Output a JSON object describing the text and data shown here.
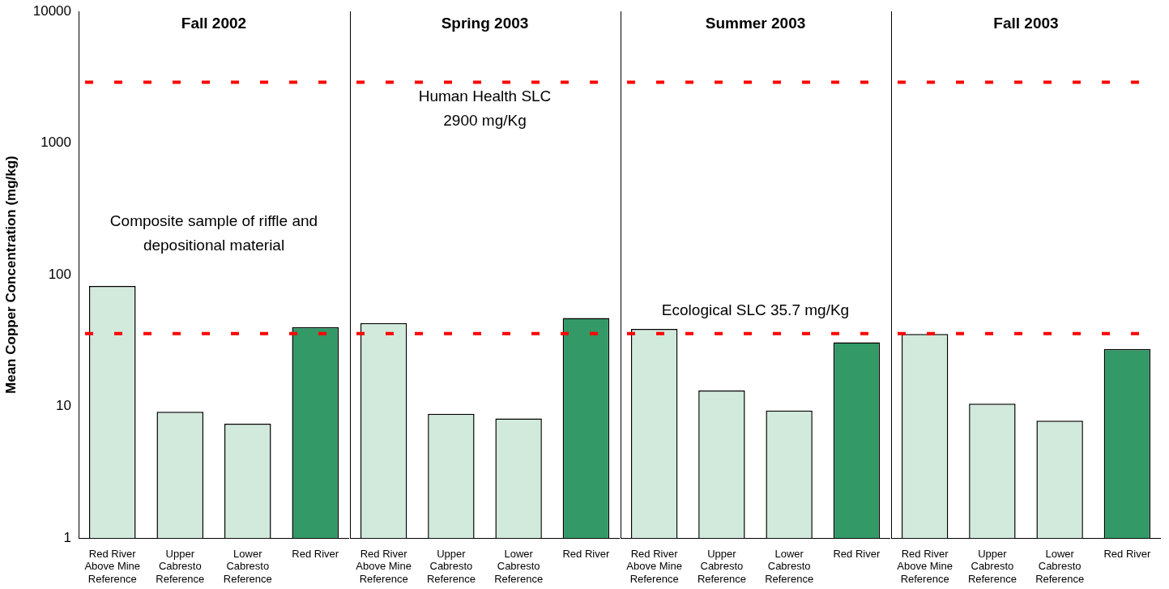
{
  "chart_data": [
    {
      "type": "bar",
      "title": "Fall 2002",
      "ylabel": "Mean Copper Concentration (mg/kg)",
      "categories": [
        "Red River Above Mine Reference",
        "Upper Cabresto Reference",
        "Lower Cabresto Reference",
        "Red River"
      ],
      "values": [
        82,
        9.1,
        7.4,
        40
      ],
      "colors": [
        "#d2eadc",
        "#d2eadc",
        "#d2eadc",
        "#339966"
      ],
      "log": true,
      "ylim": [
        1,
        10000
      ],
      "yticks": [
        1,
        10,
        100,
        1000,
        10000
      ],
      "ref_lines": [
        {
          "axis": "y",
          "value": 2900,
          "color": "#ff0000",
          "line_style": "dashed"
        },
        {
          "axis": "y",
          "value": 35.7,
          "color": "#ff0000",
          "line_style": "dashed"
        }
      ],
      "annotations": [
        "Composite sample of riffle and depositional material"
      ]
    },
    {
      "type": "bar",
      "title": "Spring 2003",
      "categories": [
        "Red River Above Mine Reference",
        "Upper Cabresto Reference",
        "Lower Cabresto Reference",
        "Red River"
      ],
      "values": [
        43,
        8.8,
        8.1,
        47
      ],
      "colors": [
        "#d2eadc",
        "#d2eadc",
        "#d2eadc",
        "#339966"
      ],
      "log": true,
      "ylim": [
        1,
        10000
      ],
      "tick_labels": "x",
      "ref_lines": [
        {
          "axis": "y",
          "value": 2900,
          "label": "Human Health SLC 2900 mg/Kg",
          "color": "#ff0000",
          "line_style": "dashed"
        },
        {
          "axis": "y",
          "value": 35.7,
          "color": "#ff0000",
          "line_style": "dashed"
        }
      ]
    },
    {
      "type": "bar",
      "title": "Summer 2003",
      "categories": [
        "Red River Above Mine Reference",
        "Upper Cabresto Reference",
        "Lower Cabresto Reference",
        "Red River"
      ],
      "values": [
        38.7,
        13.2,
        9.3,
        30.7
      ],
      "colors": [
        "#d2eadc",
        "#d2eadc",
        "#d2eadc",
        "#339966"
      ],
      "log": true,
      "ylim": [
        1,
        10000
      ],
      "tick_labels": "x",
      "ref_lines": [
        {
          "axis": "y",
          "value": 2900,
          "color": "#ff0000",
          "line_style": "dashed"
        },
        {
          "axis": "y",
          "value": 35.7,
          "label": "Ecological SLC 35.7 mg/Kg",
          "color": "#ff0000",
          "line_style": "dashed"
        }
      ]
    },
    {
      "type": "bar",
      "title": "Fall 2003",
      "categories": [
        "Red River Above Mine Reference",
        "Upper Cabresto Reference",
        "Lower Cabresto Reference",
        "Red River"
      ],
      "values": [
        35.5,
        10.5,
        7.8,
        27.3
      ],
      "colors": [
        "#d2eadc",
        "#d2eadc",
        "#d2eadc",
        "#339966"
      ],
      "log": true,
      "ylim": [
        1,
        10000
      ],
      "tick_labels": "x",
      "ref_lines": [
        {
          "axis": "y",
          "value": 2900,
          "color": "#ff0000",
          "line_style": "dashed"
        },
        {
          "axis": "y",
          "value": 35.7,
          "color": "#ff0000",
          "line_style": "dashed"
        }
      ]
    }
  ]
}
